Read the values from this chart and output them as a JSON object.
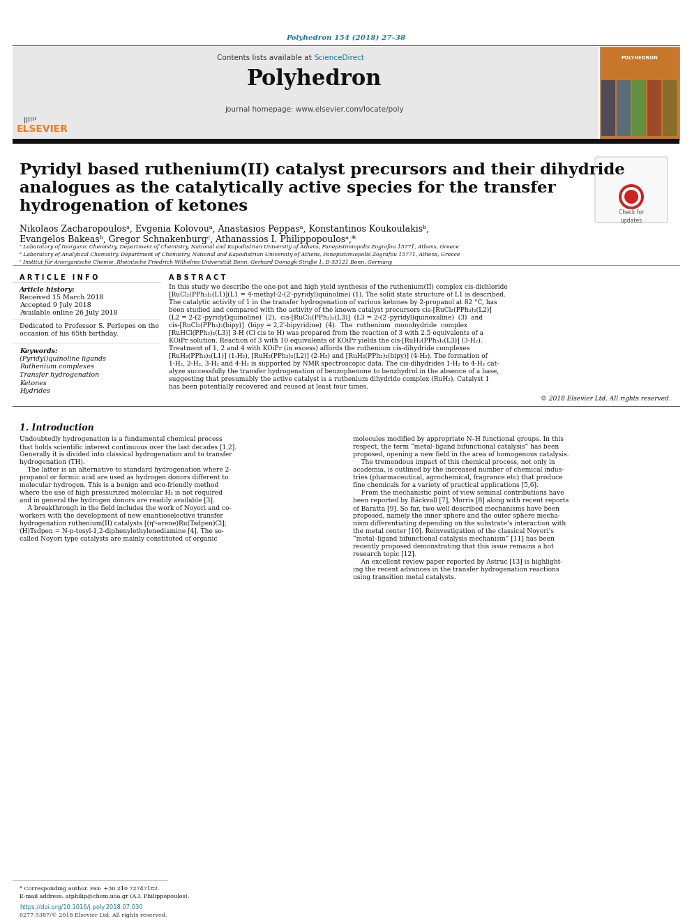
{
  "journal_ref": "Polyhedron 154 (2018) 27–38",
  "journal_name": "Polyhedron",
  "contents_text": "Contents lists available at ",
  "science_direct": "ScienceDirect",
  "journal_homepage": "journal homepage: www.elsevier.com/locate/poly",
  "article_info_header": "ARTICLE INFO",
  "abstract_header": "ABSTRACT",
  "article_history_label": "Article history:",
  "received": "Received 15 March 2018",
  "accepted": "Accepted 9 July 2018",
  "available": "Available online 26 July 2018",
  "dedicated": "Dedicated to Professor S. Perlepes on the\noccasion of his 65th birthday.",
  "keywords_label": "Keywords:",
  "keywords": "(Pyridyl)quinoline ligands\nRuthenium complexes\nTransfer hydrogenation\nKetones\nHydrides",
  "abstract_text_lines": [
    "In this study we describe the one-pot and high yield synthesis of the ruthenium(II) complex cis-dichloride",
    "[RuCl₂(PPh₃)₂(L1)](L1 = 4-methyl-2-(2′-pyridyl)quinoline) (1). The solid state structure of L1 is described.",
    "The catalytic activity of 1 in the transfer hydrogenation of various ketones by 2-propanol at 82 °C, has",
    "been studied and compared with the activity of the known catalyst precursors cis-[RuCl₂(PPh₃)₂(L2)]",
    "(L2 = 2-(2′-pyridyl)quinoline)  (2),  cis-[RuCl₂(PPh₃)₂(L3)]  (L3 = 2-(2′-pyridyl)quinoxaline)  (3)  and",
    "cis-[RuCl₂(PPh₃)₂(bipy)]  (bipy = 2,2′-bipyridine)  (4).  The  ruthenium  monohydride  complex",
    "[RuHCl(PPh₃)₂(L3)] 3-H (Cl cis to H) was prepared from the reaction of 3 with 2.5 equivalents of a",
    "KOiPr solution. Reaction of 3 with 10 equivalents of KOiPr yields the cis-[RuH₂(PPh₃)₂(L3)] (3-H₂).",
    "Treatment of 1, 2 and 4 with KOiPr (in excess) affords the ruthenium cis-dihydride complexes",
    "[RuH₂(PPh₃)₂(L1)] (1-H₂), [RuH₂(PPh₃)₂(L2)] (2-H₂) and [RuH₂(PPh₃)₂(bipy)] (4-H₂). The formation of",
    "1-H₂, 2-H₂, 3-H₂ and 4-H₂ is supported by NMR spectroscopic data. The cis-dihydrides 1-H₂ to 4-H₂ cat-",
    "alyze successfully the transfer hydrogenation of benzophenone to benzhydrol in the absence of a base,",
    "suggesting that presumably the active catalyst is a ruthenium dihydride complex (RuH₂). Catalyst 1",
    "has been potentially recovered and reused at least four times."
  ],
  "copyright": "© 2018 Elsevier Ltd. All rights reserved.",
  "intro_header": "1. Introduction",
  "intro_col1_lines": [
    "Undoubtedly hydrogenation is a fundamental chemical process",
    "that holds scientific interest continuous over the last decades [1,2].",
    "Generally it is divided into classical hydrogenation and to transfer",
    "hydrogenation (TH).",
    "    The latter is an alternative to standard hydrogenation where 2-",
    "propanol or formic acid are used as hydrogen donors different to",
    "molecular hydrogen. This is a benign and eco-friendly method",
    "where the use of high pressurized molecular H₂ is not required",
    "and in general the hydrogen donors are readily available [3].",
    "    A breakthrough in the field includes the work of Noyori and co-",
    "workers with the development of new enantioselective transfer",
    "hydrogenation ruthenium(II) catalysts [(η⁶-arene)Ru(Tsdpen)Cl];",
    "(H)Tsdpen = N-p-tosyl-1,2-diphenylethylenediamine [4]. The so-",
    "called Noyori type catalysts are mainly constituted of organic"
  ],
  "intro_col2_lines": [
    "molecules modified by appropriate N–H functional groups. In this",
    "respect, the term “metal–ligand bifunctional catalysis” has been",
    "proposed, opening a new field in the area of homogenous catalysis.",
    "    The tremendous impact of this chemical process, not only in",
    "academia, is outlined by the increased number of chemical indus-",
    "tries (pharmaceutical, agrochemical, fragrance etc) that produce",
    "fine chemicals for a variety of practical applications [5,6].",
    "    From the mechanistic point of view seminal contributions have",
    "been reported by Bäckvall [7], Morris [8] along with recent reports",
    "of Baratta [9]. So far, two well described mechanisms have been",
    "proposed, namely the inner sphere and the outer sphere mecha-",
    "nism differentiating depending on the substrate’s interaction with",
    "the metal center [10]. Reinvestigation of the classical Noyori’s",
    "“metal–ligand bifunctional catalysis mechanism” [11] has been",
    "recently proposed demonstrating that this issue remains a hot",
    "research topic [12].",
    "    An excellent review paper reported by Astruc [13] is highlight-",
    "ing the recent advances in the transfer hydrogenation reactions",
    "using transition metal catalysts."
  ],
  "affil_a": "ᵃ Laboratory of Inorganic Chemistry, Department of Chemistry, National and Kapodistrian University of Athens, Panepistimiopolis Zografou 15771, Athens, Greece",
  "affil_b": "ᵇ Laboratory of Analytical Chemistry, Department of Chemistry, National and Kapodistrian University of Athens, Panepistimiopolis Zografou 15771, Athens, Greece",
  "affil_c": "ᶜ Institut für Anorganische Chemie, Rheinische Friedrich-Wilhelms-Universität Bonn, Gerhard-Domagk-Straße 1, D-53121 Bonn, Germany",
  "corresponding_note": "* Corresponding author. Fax: +30 210 72747182.",
  "email_note": "E-mail address: atphilip@chem.uoa.gr (A.I. Philippopoulos).",
  "doi": "https://doi.org/10.1016/j.poly.2018.07.030",
  "copyright_footer": "0277-5387/© 2018 Elsevier Ltd. All rights reserved.",
  "bg_color": "#ffffff",
  "journal_ref_color": "#1a7a9a",
  "elsevier_color": "#f47920",
  "sciencedirect_color": "#1a7a9a",
  "link_color": "#1a7a9a",
  "header_bg_color": "#e8e8e8",
  "black_bar_color": "#111111",
  "text_color": "#111111"
}
